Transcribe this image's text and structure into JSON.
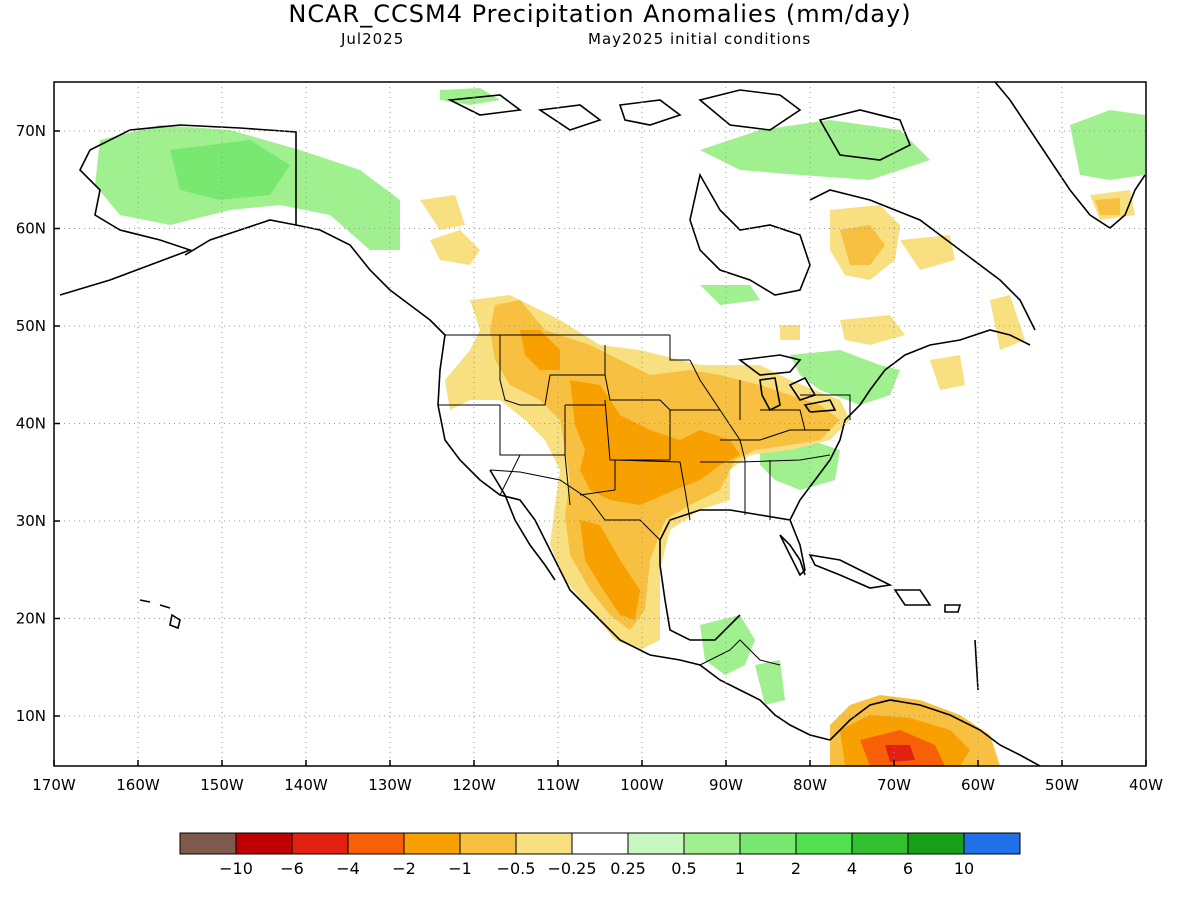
{
  "title": "NCAR_CCSM4 Precipitation Anomalies (mm/day)",
  "valid_month": "Jul2025",
  "initial_conditions": "May2025 initial conditions",
  "lat_labels": [
    "70N",
    "60N",
    "50N",
    "40N",
    "30N",
    "20N",
    "10N"
  ],
  "lon_labels": [
    "170W",
    "160W",
    "150W",
    "140W",
    "130W",
    "120W",
    "110W",
    "100W",
    "90W",
    "80W",
    "70W",
    "60W",
    "50W",
    "40W"
  ],
  "colorbar": {
    "colors": [
      "#7f5a4c",
      "#c00000",
      "#e02010",
      "#f86008",
      "#f8a000",
      "#f8c040",
      "#f8e080",
      "#ffffff",
      "#c8f8c0",
      "#a0f090",
      "#78e870",
      "#50e050",
      "#30c030",
      "#18a018",
      "#2070e8"
    ],
    "labels": [
      "−10",
      "−6",
      "−4",
      "−2",
      "−1",
      "−0.5",
      "−0.25",
      "0.25",
      "0.5",
      "1",
      "2",
      "4",
      "6",
      "10"
    ]
  }
}
